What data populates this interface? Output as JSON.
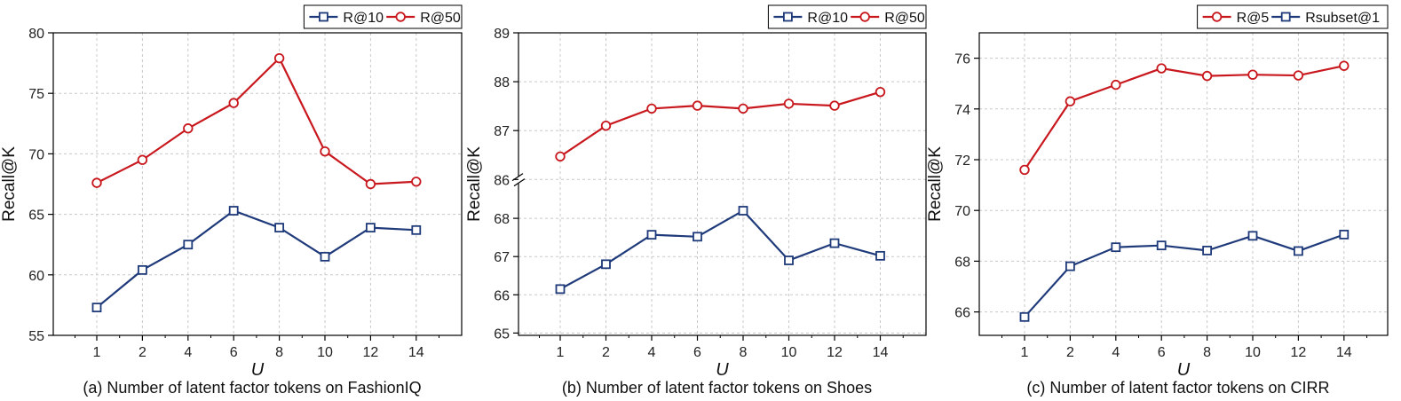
{
  "chart_data": [
    {
      "type": "line",
      "caption": "(a) Number of latent factor tokens on FashionIQ",
      "xlabel": "U",
      "ylabel": "Recall@K",
      "categories": [
        "1",
        "2",
        "4",
        "6",
        "8",
        "10",
        "12",
        "14"
      ],
      "ylim": [
        55,
        80
      ],
      "yticks": [
        "55",
        "60",
        "65",
        "70",
        "75",
        "80"
      ],
      "grid": true,
      "legend": "top-right",
      "series": [
        {
          "name": "R@10",
          "color": "#1f3a7a",
          "marker": "square",
          "values": [
            57.3,
            60.4,
            62.5,
            65.3,
            63.9,
            61.5,
            63.9,
            63.7
          ]
        },
        {
          "name": "R@50",
          "color": "#c8181e",
          "marker": "circle",
          "values": [
            67.6,
            69.5,
            72.1,
            74.2,
            77.9,
            70.2,
            67.5,
            67.7
          ]
        }
      ]
    },
    {
      "type": "line",
      "caption": "(b) Number of latent factor tokens on Shoes",
      "xlabel": "U",
      "ylabel": "Recall@K",
      "categories": [
        "1",
        "2",
        "4",
        "6",
        "8",
        "10",
        "12",
        "14"
      ],
      "ylim": [
        65,
        89
      ],
      "axis_break": {
        "lower": [
          65,
          69
        ],
        "upper": [
          86,
          89
        ]
      },
      "yticks": [
        "65",
        "66",
        "67",
        "68",
        "86",
        "87",
        "88",
        "89"
      ],
      "grid": true,
      "legend": "top-right",
      "series": [
        {
          "name": "R@10",
          "color": "#1f3a7a",
          "marker": "square",
          "values": [
            66.15,
            66.8,
            67.57,
            67.52,
            68.2,
            66.9,
            67.35,
            67.02
          ]
        },
        {
          "name": "R@50",
          "color": "#c8181e",
          "marker": "circle",
          "values": [
            86.47,
            87.1,
            87.45,
            87.51,
            87.45,
            87.55,
            87.51,
            87.79
          ]
        }
      ]
    },
    {
      "type": "line",
      "caption": "(c) Number of latent factor tokens on CIRR",
      "xlabel": "U",
      "ylabel": "Recall@K",
      "categories": [
        "1",
        "2",
        "4",
        "6",
        "8",
        "10",
        "12",
        "14"
      ],
      "ylim": [
        65,
        77
      ],
      "yticks": [
        "66",
        "68",
        "70",
        "72",
        "74",
        "76"
      ],
      "grid": true,
      "legend": "top-right",
      "series": [
        {
          "name": "R@5",
          "color": "#c8181e",
          "marker": "circle",
          "values": [
            71.6,
            74.3,
            74.95,
            75.6,
            75.3,
            75.35,
            75.32,
            75.7
          ]
        },
        {
          "name": "Rsubset@1",
          "color": "#1f3a7a",
          "marker": "square",
          "values": [
            65.8,
            67.8,
            68.55,
            68.62,
            68.42,
            69.0,
            68.4,
            69.05
          ]
        }
      ]
    }
  ]
}
